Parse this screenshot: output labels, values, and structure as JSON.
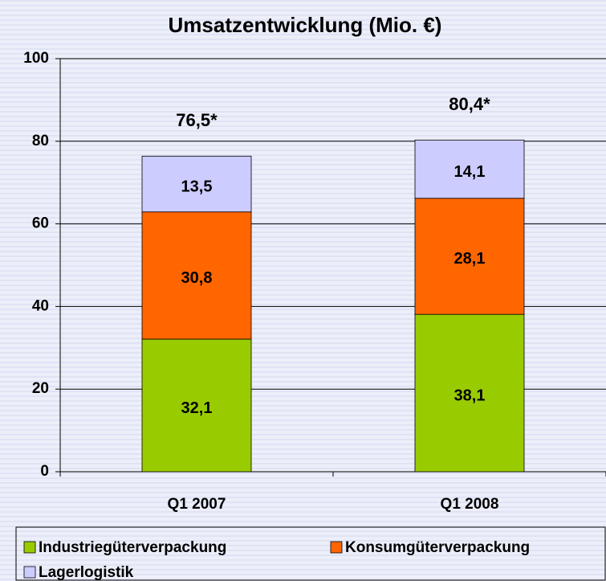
{
  "chart_data": {
    "type": "stacked_bar",
    "title": "Umsatzentwicklung (Mio. €)",
    "categories": [
      "Q1 2007",
      "Q1 2008"
    ],
    "series": [
      {
        "name": "Industriegüterverpackung",
        "color": "#99cc00",
        "values": [
          32.1,
          38.1
        ],
        "value_labels": [
          "32,1",
          "38,1"
        ]
      },
      {
        "name": "Konsumgüterverpackung",
        "color": "#ff6600",
        "values": [
          30.8,
          28.1
        ],
        "value_labels": [
          "30,8",
          "28,1"
        ]
      },
      {
        "name": "Lagerlogistik",
        "color": "#ccccff",
        "values": [
          13.5,
          14.1
        ],
        "value_labels": [
          "13,5",
          "14,1"
        ]
      }
    ],
    "annotations": [
      "76,5*",
      "80,4*"
    ],
    "ylim": [
      0,
      100
    ],
    "yticks": [
      0,
      20,
      40,
      60,
      80,
      100
    ],
    "grid": true,
    "legend": "bottom"
  }
}
